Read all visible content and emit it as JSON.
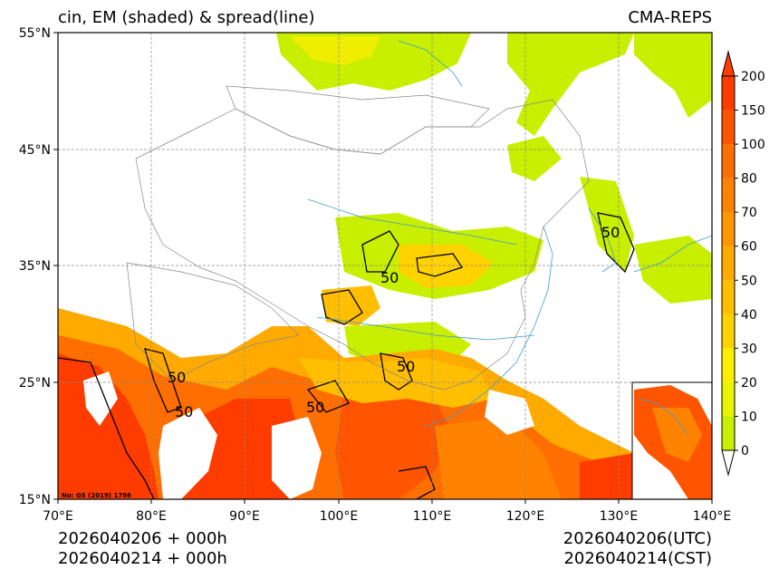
{
  "header": {
    "title": "cin, EM (shaded) & spread(line)",
    "model": "CMA-REPS"
  },
  "axes": {
    "lat_labels": [
      "55°N",
      "45°N",
      "35°N",
      "25°N",
      "15°N"
    ],
    "lon_labels": [
      "70°E",
      "80°E",
      "90°E",
      "100°E",
      "110°E",
      "120°E",
      "130°E",
      "140°E"
    ]
  },
  "colorbar": {
    "levels": [
      "0",
      "10",
      "20",
      "30",
      "40",
      "50",
      "60",
      "70",
      "80",
      "100",
      "150",
      "200"
    ],
    "colors": [
      "#c8ee00",
      "#e8f400",
      "#ffee00",
      "#ffd200",
      "#ffbe00",
      "#ffaa00",
      "#ff9600",
      "#ff8200",
      "#ff6e00",
      "#ff5500",
      "#ff3c00"
    ],
    "extend": "both"
  },
  "contour_labels": [
    "50",
    "50",
    "50",
    "50",
    "50",
    "50"
  ],
  "map_note": "No: GS (2019) 1786",
  "footer": {
    "init_utc": "2026040206  +  000h",
    "init_cst": "2026040214  +  000h",
    "valid_utc": "2026040206(UTC)",
    "valid_cst": "2026040214(CST)"
  }
}
